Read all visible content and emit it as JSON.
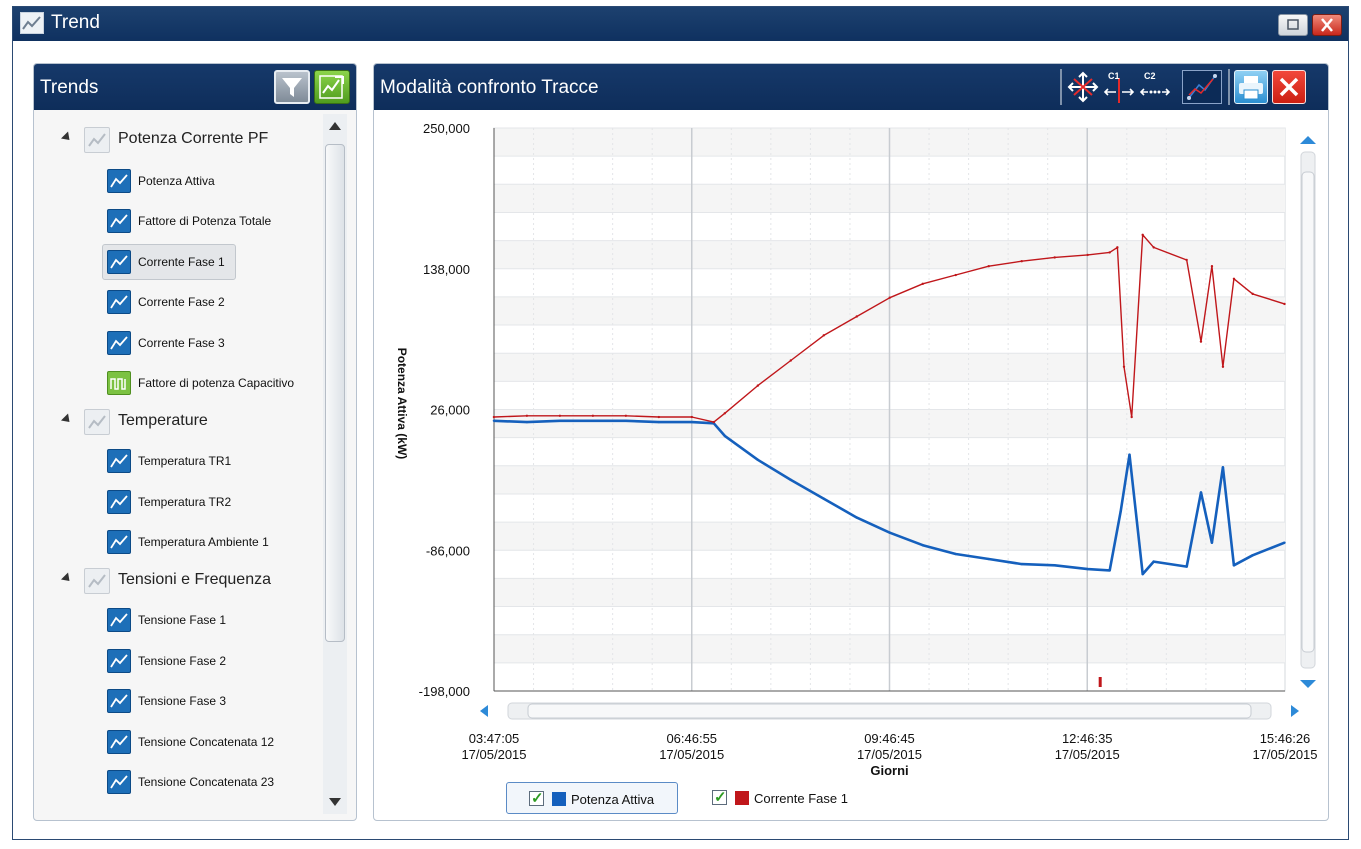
{
  "window": {
    "title": "Trend",
    "icon": "trend-chart-icon"
  },
  "left_panel": {
    "title": "Trends",
    "buttons": [
      {
        "name": "filter-icon"
      },
      {
        "name": "refresh-chart-icon"
      }
    ],
    "groups": [
      {
        "label": "Potenza Corrente PF",
        "items": [
          {
            "label": "Potenza Attiva",
            "icon": "line-chart-icon"
          },
          {
            "label": "Fattore di Potenza Totale",
            "icon": "line-chart-icon"
          },
          {
            "label": "Corrente Fase 1",
            "icon": "line-chart-icon",
            "selected": true
          },
          {
            "label": "Corrente Fase 2",
            "icon": "line-chart-icon"
          },
          {
            "label": "Corrente Fase 3",
            "icon": "line-chart-icon"
          },
          {
            "label": "Fattore di potenza Capacitivo",
            "icon": "step-chart-icon"
          }
        ]
      },
      {
        "label": "Temperature",
        "items": [
          {
            "label": "Temperatura TR1",
            "icon": "line-chart-icon"
          },
          {
            "label": "Temperatura TR2",
            "icon": "line-chart-icon"
          },
          {
            "label": "Temperatura Ambiente 1",
            "icon": "line-chart-icon"
          }
        ]
      },
      {
        "label": "Tensioni e Frequenza",
        "items": [
          {
            "label": "Tensione Fase 1",
            "icon": "line-chart-icon"
          },
          {
            "label": "Tensione Fase 2",
            "icon": "line-chart-icon"
          },
          {
            "label": "Tensione Fase 3",
            "icon": "line-chart-icon"
          },
          {
            "label": "Tensione Concatenata 12",
            "icon": "line-chart-icon"
          },
          {
            "label": "Tensione Concatenata 23",
            "icon": "line-chart-icon"
          }
        ]
      }
    ]
  },
  "right_panel": {
    "title": "Modalità confronto Tracce",
    "toolbar": [
      {
        "name": "pan-zoom-icon"
      },
      {
        "name": "cursor-c1-icon",
        "label": "C1"
      },
      {
        "name": "cursor-c2-icon",
        "label": "C2"
      },
      {
        "name": "trace-compare-icon"
      },
      {
        "name": "print-icon"
      },
      {
        "name": "close-icon"
      }
    ]
  },
  "colors": {
    "header": "#0f3160",
    "series1": "#1560bd",
    "series2": "#c0171b"
  },
  "chart_data": {
    "type": "line",
    "ylabel": "Potenza Attiva (kW)",
    "xlabel": "Giorni",
    "ylim": [
      -198000,
      250000
    ],
    "y_ticks": [
      "250,000",
      "138,000",
      "26,000",
      "-86,000",
      "-198,000"
    ],
    "x_ticks": [
      {
        "time": "03:47:05",
        "date": "17/05/2015"
      },
      {
        "time": "06:46:55",
        "date": "17/05/2015"
      },
      {
        "time": "09:46:45",
        "date": "17/05/2015"
      },
      {
        "time": "12:46:35",
        "date": "17/05/2015"
      },
      {
        "time": "15:46:26",
        "date": "17/05/2015"
      }
    ],
    "grid": true,
    "legend_position": "bottom",
    "series": [
      {
        "name": "Potenza Attiva",
        "color": "#1560bd",
        "x": [
          "03:47",
          "04:17",
          "04:47",
          "05:17",
          "05:47",
          "06:17",
          "06:47",
          "07:07",
          "07:17",
          "07:47",
          "08:17",
          "08:47",
          "09:17",
          "09:47",
          "10:17",
          "10:47",
          "11:17",
          "11:47",
          "12:17",
          "12:47",
          "13:07",
          "13:17",
          "13:25",
          "13:37",
          "13:47",
          "14:17",
          "14:30",
          "14:40",
          "14:50",
          "15:00",
          "15:17",
          "15:46"
        ],
        "values": [
          17000,
          16000,
          17000,
          17000,
          17000,
          16000,
          16000,
          15000,
          5000,
          -14000,
          -30000,
          -45000,
          -60000,
          -72000,
          -82000,
          -89000,
          -93000,
          -97000,
          -98000,
          -101000,
          -102000,
          -55000,
          -10000,
          -105000,
          -95000,
          -99000,
          -40000,
          -80000,
          -20000,
          -98000,
          -90000,
          -80000
        ]
      },
      {
        "name": "Corrente Fase 1",
        "color": "#c0171b",
        "x": [
          "03:47",
          "04:17",
          "04:47",
          "05:17",
          "05:47",
          "06:17",
          "06:47",
          "07:07",
          "07:17",
          "07:47",
          "08:17",
          "08:47",
          "09:17",
          "09:47",
          "10:17",
          "10:47",
          "11:17",
          "11:47",
          "12:17",
          "12:47",
          "13:07",
          "13:14",
          "13:20",
          "13:27",
          "13:37",
          "13:47",
          "14:17",
          "14:30",
          "14:40",
          "14:50",
          "15:00",
          "15:17",
          "15:46"
        ],
        "values": [
          20000,
          21000,
          21000,
          21000,
          21000,
          20000,
          20000,
          16000,
          23000,
          45000,
          65000,
          85000,
          100000,
          115000,
          126000,
          133000,
          140000,
          144000,
          147000,
          149000,
          151000,
          155000,
          60000,
          20000,
          165000,
          155000,
          145000,
          80000,
          140000,
          60000,
          130000,
          118000,
          110000
        ]
      }
    ]
  },
  "legend": [
    {
      "label": "Potenza Attiva",
      "color": "#1560bd",
      "checked": true
    },
    {
      "label": "Corrente Fase 1",
      "color": "#c0171b",
      "checked": true
    }
  ]
}
